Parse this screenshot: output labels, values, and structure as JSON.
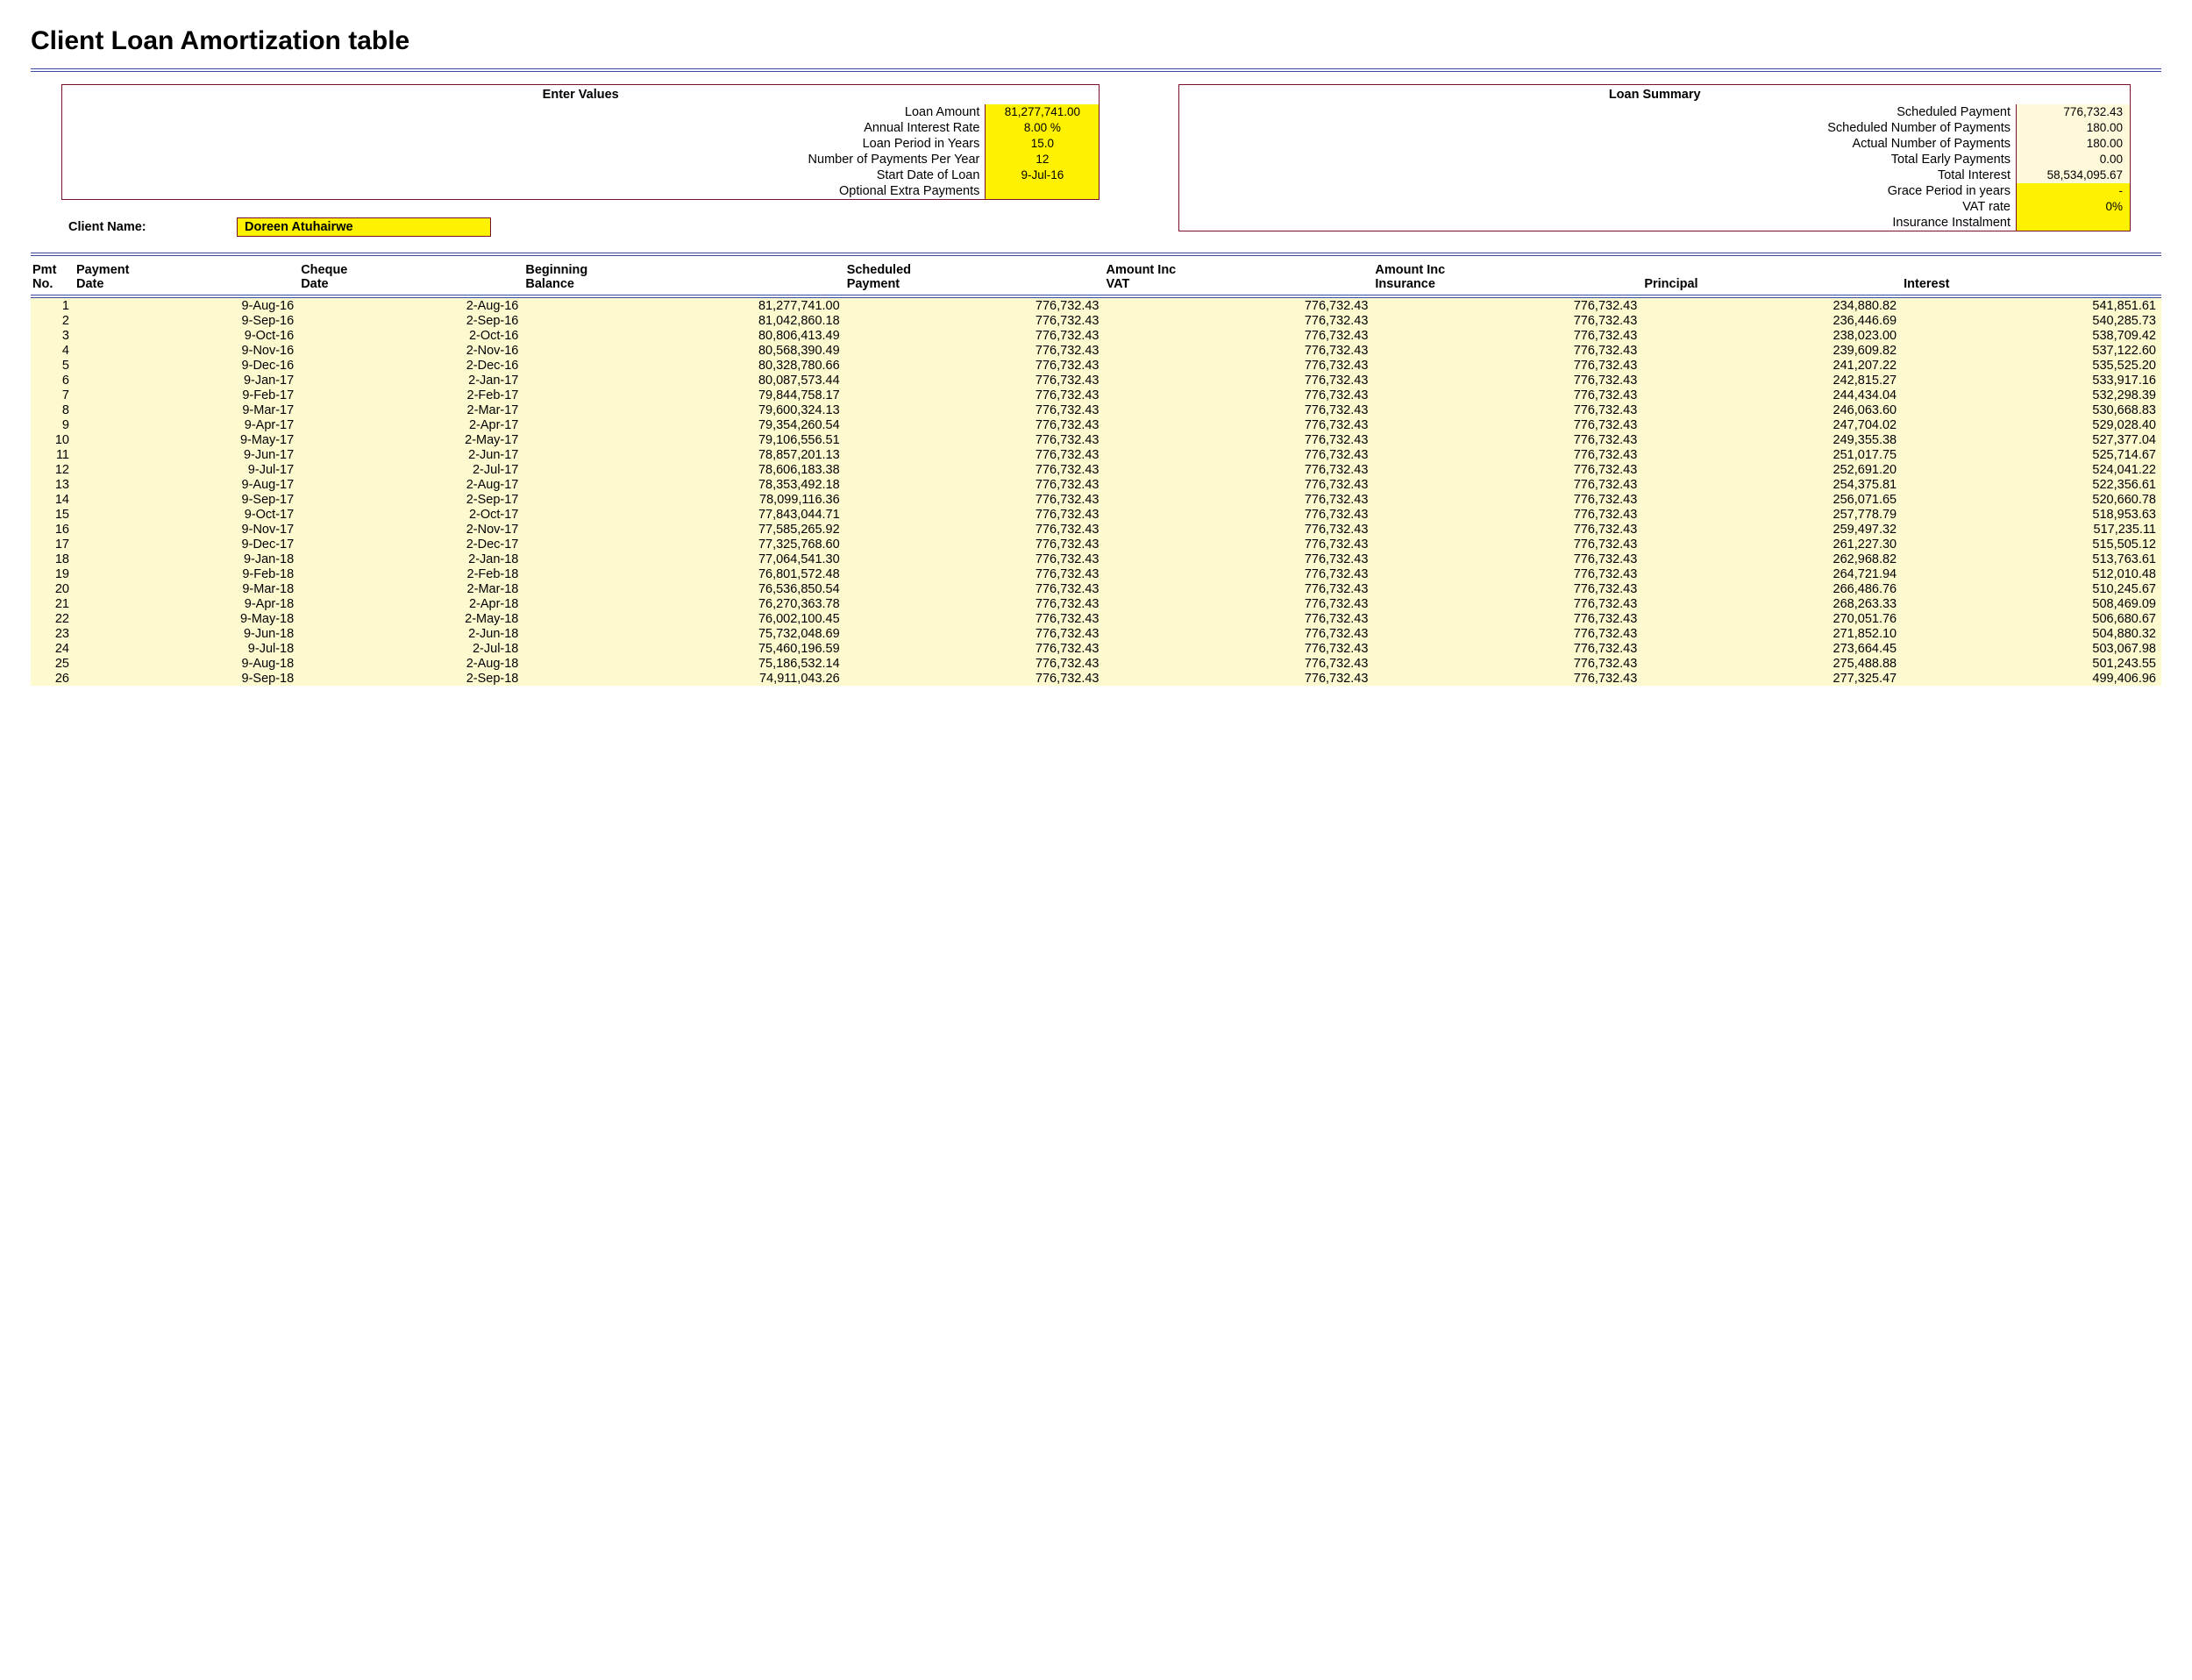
{
  "title": "Client Loan Amortization table",
  "enter_values": {
    "header": "Enter Values",
    "rows": [
      {
        "label": "Loan Amount",
        "value": "81,277,741.00",
        "hl": true
      },
      {
        "label": "Annual Interest Rate",
        "value": "8.00  %",
        "hl": true
      },
      {
        "label": "Loan Period in Years",
        "value": "15.0",
        "hl": true
      },
      {
        "label": "Number of Payments Per Year",
        "value": "12",
        "hl": true
      },
      {
        "label": "Start Date of Loan",
        "value": "9-Jul-16",
        "hl": true
      },
      {
        "label": "Optional Extra Payments",
        "value": "",
        "hl": true
      }
    ]
  },
  "client_name_label": "Client Name:",
  "client_name": "Doreen Atuhairwe",
  "loan_summary": {
    "header": "Loan Summary",
    "rows": [
      {
        "label": "Scheduled Payment",
        "value": "776,732.43",
        "hl": false
      },
      {
        "label": "Scheduled Number of Payments",
        "value": "180.00",
        "hl": false
      },
      {
        "label": "Actual Number of Payments",
        "value": "180.00",
        "hl": false
      },
      {
        "label": "Total Early Payments",
        "value": "0.00",
        "hl": false
      },
      {
        "label": "Total Interest",
        "value": "58,534,095.67",
        "hl": false
      },
      {
        "label": "Grace Period in years",
        "value": "-",
        "hl": true
      },
      {
        "label": "VAT rate",
        "value": "0%",
        "hl": true
      },
      {
        "label": "Insurance Instalment",
        "value": "",
        "hl": true
      }
    ]
  },
  "table": {
    "columns": [
      "Pmt\nNo.",
      "Payment\nDate",
      "Cheque\nDate",
      "Beginning\nBalance",
      "Scheduled\nPayment",
      "Amount Inc\nVAT",
      "Amount Inc\nInsurance",
      "Principal",
      "Interest"
    ],
    "rows": [
      [
        "1",
        "9-Aug-16",
        "2-Aug-16",
        "81,277,741.00",
        "776,732.43",
        "776,732.43",
        "776,732.43",
        "234,880.82",
        "541,851.61"
      ],
      [
        "2",
        "9-Sep-16",
        "2-Sep-16",
        "81,042,860.18",
        "776,732.43",
        "776,732.43",
        "776,732.43",
        "236,446.69",
        "540,285.73"
      ],
      [
        "3",
        "9-Oct-16",
        "2-Oct-16",
        "80,806,413.49",
        "776,732.43",
        "776,732.43",
        "776,732.43",
        "238,023.00",
        "538,709.42"
      ],
      [
        "4",
        "9-Nov-16",
        "2-Nov-16",
        "80,568,390.49",
        "776,732.43",
        "776,732.43",
        "776,732.43",
        "239,609.82",
        "537,122.60"
      ],
      [
        "5",
        "9-Dec-16",
        "2-Dec-16",
        "80,328,780.66",
        "776,732.43",
        "776,732.43",
        "776,732.43",
        "241,207.22",
        "535,525.20"
      ],
      [
        "6",
        "9-Jan-17",
        "2-Jan-17",
        "80,087,573.44",
        "776,732.43",
        "776,732.43",
        "776,732.43",
        "242,815.27",
        "533,917.16"
      ],
      [
        "7",
        "9-Feb-17",
        "2-Feb-17",
        "79,844,758.17",
        "776,732.43",
        "776,732.43",
        "776,732.43",
        "244,434.04",
        "532,298.39"
      ],
      [
        "8",
        "9-Mar-17",
        "2-Mar-17",
        "79,600,324.13",
        "776,732.43",
        "776,732.43",
        "776,732.43",
        "246,063.60",
        "530,668.83"
      ],
      [
        "9",
        "9-Apr-17",
        "2-Apr-17",
        "79,354,260.54",
        "776,732.43",
        "776,732.43",
        "776,732.43",
        "247,704.02",
        "529,028.40"
      ],
      [
        "10",
        "9-May-17",
        "2-May-17",
        "79,106,556.51",
        "776,732.43",
        "776,732.43",
        "776,732.43",
        "249,355.38",
        "527,377.04"
      ],
      [
        "11",
        "9-Jun-17",
        "2-Jun-17",
        "78,857,201.13",
        "776,732.43",
        "776,732.43",
        "776,732.43",
        "251,017.75",
        "525,714.67"
      ],
      [
        "12",
        "9-Jul-17",
        "2-Jul-17",
        "78,606,183.38",
        "776,732.43",
        "776,732.43",
        "776,732.43",
        "252,691.20",
        "524,041.22"
      ],
      [
        "13",
        "9-Aug-17",
        "2-Aug-17",
        "78,353,492.18",
        "776,732.43",
        "776,732.43",
        "776,732.43",
        "254,375.81",
        "522,356.61"
      ],
      [
        "14",
        "9-Sep-17",
        "2-Sep-17",
        "78,099,116.36",
        "776,732.43",
        "776,732.43",
        "776,732.43",
        "256,071.65",
        "520,660.78"
      ],
      [
        "15",
        "9-Oct-17",
        "2-Oct-17",
        "77,843,044.71",
        "776,732.43",
        "776,732.43",
        "776,732.43",
        "257,778.79",
        "518,953.63"
      ],
      [
        "16",
        "9-Nov-17",
        "2-Nov-17",
        "77,585,265.92",
        "776,732.43",
        "776,732.43",
        "776,732.43",
        "259,497.32",
        "517,235.11"
      ],
      [
        "17",
        "9-Dec-17",
        "2-Dec-17",
        "77,325,768.60",
        "776,732.43",
        "776,732.43",
        "776,732.43",
        "261,227.30",
        "515,505.12"
      ],
      [
        "18",
        "9-Jan-18",
        "2-Jan-18",
        "77,064,541.30",
        "776,732.43",
        "776,732.43",
        "776,732.43",
        "262,968.82",
        "513,763.61"
      ],
      [
        "19",
        "9-Feb-18",
        "2-Feb-18",
        "76,801,572.48",
        "776,732.43",
        "776,732.43",
        "776,732.43",
        "264,721.94",
        "512,010.48"
      ],
      [
        "20",
        "9-Mar-18",
        "2-Mar-18",
        "76,536,850.54",
        "776,732.43",
        "776,732.43",
        "776,732.43",
        "266,486.76",
        "510,245.67"
      ],
      [
        "21",
        "9-Apr-18",
        "2-Apr-18",
        "76,270,363.78",
        "776,732.43",
        "776,732.43",
        "776,732.43",
        "268,263.33",
        "508,469.09"
      ],
      [
        "22",
        "9-May-18",
        "2-May-18",
        "76,002,100.45",
        "776,732.43",
        "776,732.43",
        "776,732.43",
        "270,051.76",
        "506,680.67"
      ],
      [
        "23",
        "9-Jun-18",
        "2-Jun-18",
        "75,732,048.69",
        "776,732.43",
        "776,732.43",
        "776,732.43",
        "271,852.10",
        "504,880.32"
      ],
      [
        "24",
        "9-Jul-18",
        "2-Jul-18",
        "75,460,196.59",
        "776,732.43",
        "776,732.43",
        "776,732.43",
        "273,664.45",
        "503,067.98"
      ],
      [
        "25",
        "9-Aug-18",
        "2-Aug-18",
        "75,186,532.14",
        "776,732.43",
        "776,732.43",
        "776,732.43",
        "275,488.88",
        "501,243.55"
      ],
      [
        "26",
        "9-Sep-18",
        "2-Sep-18",
        "74,911,043.26",
        "776,732.43",
        "776,732.43",
        "776,732.43",
        "277,325.47",
        "499,406.96"
      ]
    ]
  },
  "colors": {
    "rule": "#3a4b9e",
    "box_border": "#7a0f2c",
    "highlight": "#fff200",
    "pale": "#fff9dc",
    "row_bg": "#fdfad0"
  }
}
